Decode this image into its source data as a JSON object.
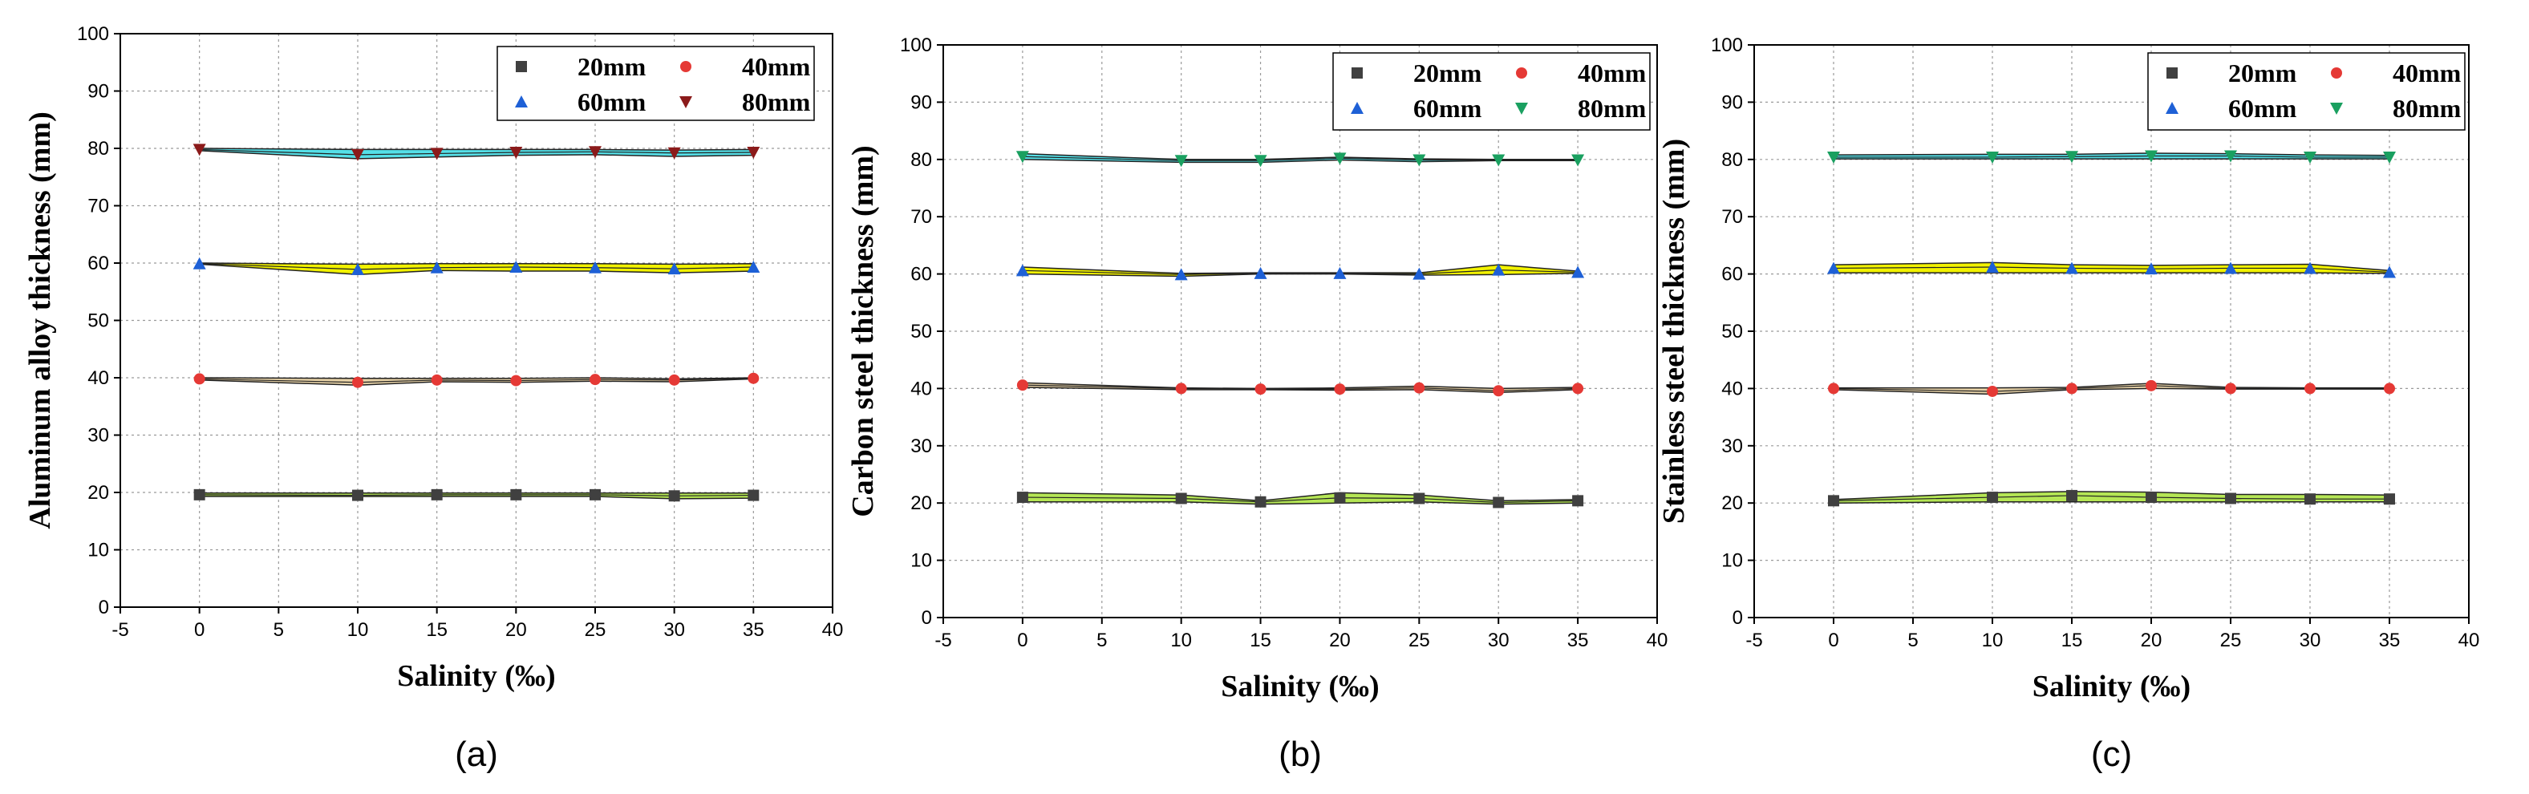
{
  "chart_data": [
    {
      "type": "line",
      "panel_label": "(a)",
      "xlabel": "Salinity (‰)",
      "ylabel": "Aluminum alloy thickness (mm)",
      "xlim": [
        -5,
        40
      ],
      "ylim": [
        0,
        100
      ],
      "xticks": [
        -5,
        0,
        5,
        10,
        15,
        20,
        25,
        30,
        35,
        40
      ],
      "yticks": [
        0,
        10,
        20,
        30,
        40,
        50,
        60,
        70,
        80,
        90,
        100
      ],
      "grid": true,
      "legend_position": "top-right",
      "x": [
        0,
        10,
        15,
        20,
        25,
        30,
        35
      ],
      "series": [
        {
          "name": "20mm",
          "marker": "square",
          "color": "#404040",
          "fill": "#b5e655",
          "values": [
            19.6,
            19.5,
            19.6,
            19.6,
            19.6,
            19.4,
            19.5
          ],
          "band_upper": [
            19.9,
            19.9,
            19.9,
            19.9,
            19.9,
            19.9,
            19.9
          ],
          "band_lower": [
            19.3,
            19.3,
            19.3,
            19.3,
            19.3,
            18.9,
            19.0
          ]
        },
        {
          "name": "40mm",
          "marker": "circle",
          "color": "#e53935",
          "fill": "#e8d3a8",
          "values": [
            39.8,
            39.2,
            39.6,
            39.5,
            39.7,
            39.6,
            39.9
          ],
          "band_upper": [
            40.0,
            39.9,
            39.9,
            39.9,
            40.0,
            39.8,
            40.0
          ],
          "band_lower": [
            39.6,
            38.7,
            39.3,
            39.2,
            39.4,
            39.3,
            39.8
          ]
        },
        {
          "name": "60mm",
          "marker": "triangle-up",
          "color": "#1e60d6",
          "fill": "#f2f200",
          "values": [
            59.9,
            58.9,
            59.2,
            59.3,
            59.2,
            59.0,
            59.3
          ],
          "band_upper": [
            60.0,
            59.8,
            59.9,
            59.9,
            59.9,
            59.8,
            59.9
          ],
          "band_lower": [
            59.8,
            58.0,
            58.7,
            58.6,
            58.6,
            58.3,
            58.6
          ]
        },
        {
          "name": "80mm",
          "marker": "triangle-down",
          "color": "#8b1a1a",
          "fill": "#55e0e8",
          "values": [
            79.8,
            78.9,
            79.1,
            79.3,
            79.4,
            79.2,
            79.3
          ],
          "band_upper": [
            80.0,
            79.8,
            79.8,
            79.8,
            79.8,
            79.7,
            79.8
          ],
          "band_lower": [
            79.6,
            78.2,
            78.5,
            78.8,
            78.9,
            78.6,
            78.8
          ]
        }
      ]
    },
    {
      "type": "line",
      "panel_label": "(b)",
      "xlabel": "Salinity (‰)",
      "ylabel": "Carbon steel thickness (mm)",
      "xlim": [
        -5,
        40
      ],
      "ylim": [
        0,
        100
      ],
      "xticks": [
        -5,
        0,
        5,
        10,
        15,
        20,
        25,
        30,
        35,
        40
      ],
      "yticks": [
        0,
        10,
        20,
        30,
        40,
        50,
        60,
        70,
        80,
        90,
        100
      ],
      "grid": true,
      "legend_position": "top-right",
      "x": [
        0,
        10,
        15,
        20,
        25,
        30,
        35
      ],
      "series": [
        {
          "name": "20mm",
          "marker": "square",
          "color": "#404040",
          "fill": "#b5e655",
          "values": [
            21.0,
            20.8,
            20.2,
            20.9,
            20.8,
            20.1,
            20.4
          ],
          "band_upper": [
            21.8,
            21.4,
            20.4,
            21.8,
            21.4,
            20.4,
            20.6
          ],
          "band_lower": [
            20.2,
            20.2,
            19.8,
            20.0,
            20.2,
            19.8,
            20.0
          ]
        },
        {
          "name": "40mm",
          "marker": "circle",
          "color": "#e53935",
          "fill": "#e8d3a8",
          "values": [
            40.6,
            40.0,
            39.9,
            39.9,
            40.1,
            39.6,
            40.0
          ],
          "band_upper": [
            41.0,
            40.1,
            40.0,
            40.1,
            40.4,
            40.0,
            40.2
          ],
          "band_lower": [
            40.2,
            39.8,
            39.8,
            39.7,
            39.8,
            39.3,
            39.8
          ]
        },
        {
          "name": "60mm",
          "marker": "triangle-up",
          "color": "#1e60d6",
          "fill": "#f2f200",
          "values": [
            60.6,
            59.9,
            60.1,
            60.1,
            60.0,
            60.7,
            60.3
          ],
          "band_upper": [
            61.2,
            60.1,
            60.2,
            60.2,
            60.2,
            61.6,
            60.5
          ],
          "band_lower": [
            60.0,
            59.6,
            60.0,
            60.0,
            59.8,
            59.9,
            60.1
          ]
        },
        {
          "name": "80mm",
          "marker": "triangle-down",
          "color": "#1aa060",
          "fill": "#55e0e8",
          "values": [
            80.5,
            79.8,
            79.8,
            80.2,
            79.9,
            79.9,
            79.9
          ],
          "band_upper": [
            81.0,
            80.0,
            80.0,
            80.4,
            80.1,
            80.0,
            80.0
          ],
          "band_lower": [
            80.0,
            79.5,
            79.5,
            79.9,
            79.6,
            79.8,
            79.8
          ]
        }
      ]
    },
    {
      "type": "line",
      "panel_label": "(c)",
      "xlabel": "Salinity (‰)",
      "ylabel": "Stainless steel thickness (mm)",
      "xlim": [
        -5,
        40
      ],
      "ylim": [
        0,
        100
      ],
      "xticks": [
        -5,
        0,
        5,
        10,
        15,
        20,
        25,
        30,
        35,
        40
      ],
      "yticks": [
        0,
        10,
        20,
        30,
        40,
        50,
        60,
        70,
        80,
        90,
        100
      ],
      "grid": true,
      "legend_position": "top-right",
      "x": [
        0,
        10,
        15,
        20,
        25,
        30,
        35
      ],
      "series": [
        {
          "name": "20mm",
          "marker": "square",
          "color": "#404040",
          "fill": "#b5e655",
          "values": [
            20.4,
            21.0,
            21.3,
            21.0,
            20.8,
            20.7,
            20.7
          ],
          "band_upper": [
            20.6,
            21.8,
            22.0,
            21.9,
            21.5,
            21.5,
            21.4
          ],
          "band_lower": [
            20.0,
            20.2,
            20.2,
            20.2,
            20.2,
            20.2,
            20.2
          ]
        },
        {
          "name": "40mm",
          "marker": "circle",
          "color": "#e53935",
          "fill": "#e8d3a8",
          "values": [
            40.0,
            39.5,
            40.0,
            40.5,
            40.0,
            40.0,
            40.0
          ],
          "band_upper": [
            40.1,
            40.1,
            40.2,
            40.9,
            40.2,
            40.1,
            40.1
          ],
          "band_lower": [
            39.8,
            39.0,
            39.8,
            40.0,
            39.9,
            39.9,
            39.9
          ]
        },
        {
          "name": "60mm",
          "marker": "triangle-up",
          "color": "#1e60d6",
          "fill": "#f2f200",
          "values": [
            61.0,
            61.2,
            61.0,
            60.9,
            61.0,
            61.0,
            60.3
          ],
          "band_upper": [
            61.6,
            62.0,
            61.6,
            61.5,
            61.6,
            61.7,
            60.6
          ],
          "band_lower": [
            60.2,
            60.2,
            60.2,
            60.2,
            60.2,
            60.2,
            60.1
          ]
        },
        {
          "name": "80mm",
          "marker": "triangle-down",
          "color": "#1aa060",
          "fill": "#55e0e8",
          "values": [
            80.4,
            80.4,
            80.5,
            80.6,
            80.6,
            80.4,
            80.4
          ],
          "band_upper": [
            80.8,
            80.9,
            80.9,
            81.1,
            81.0,
            80.8,
            80.7
          ],
          "band_lower": [
            80.1,
            80.1,
            80.1,
            80.1,
            80.1,
            80.1,
            80.1
          ]
        }
      ]
    }
  ]
}
